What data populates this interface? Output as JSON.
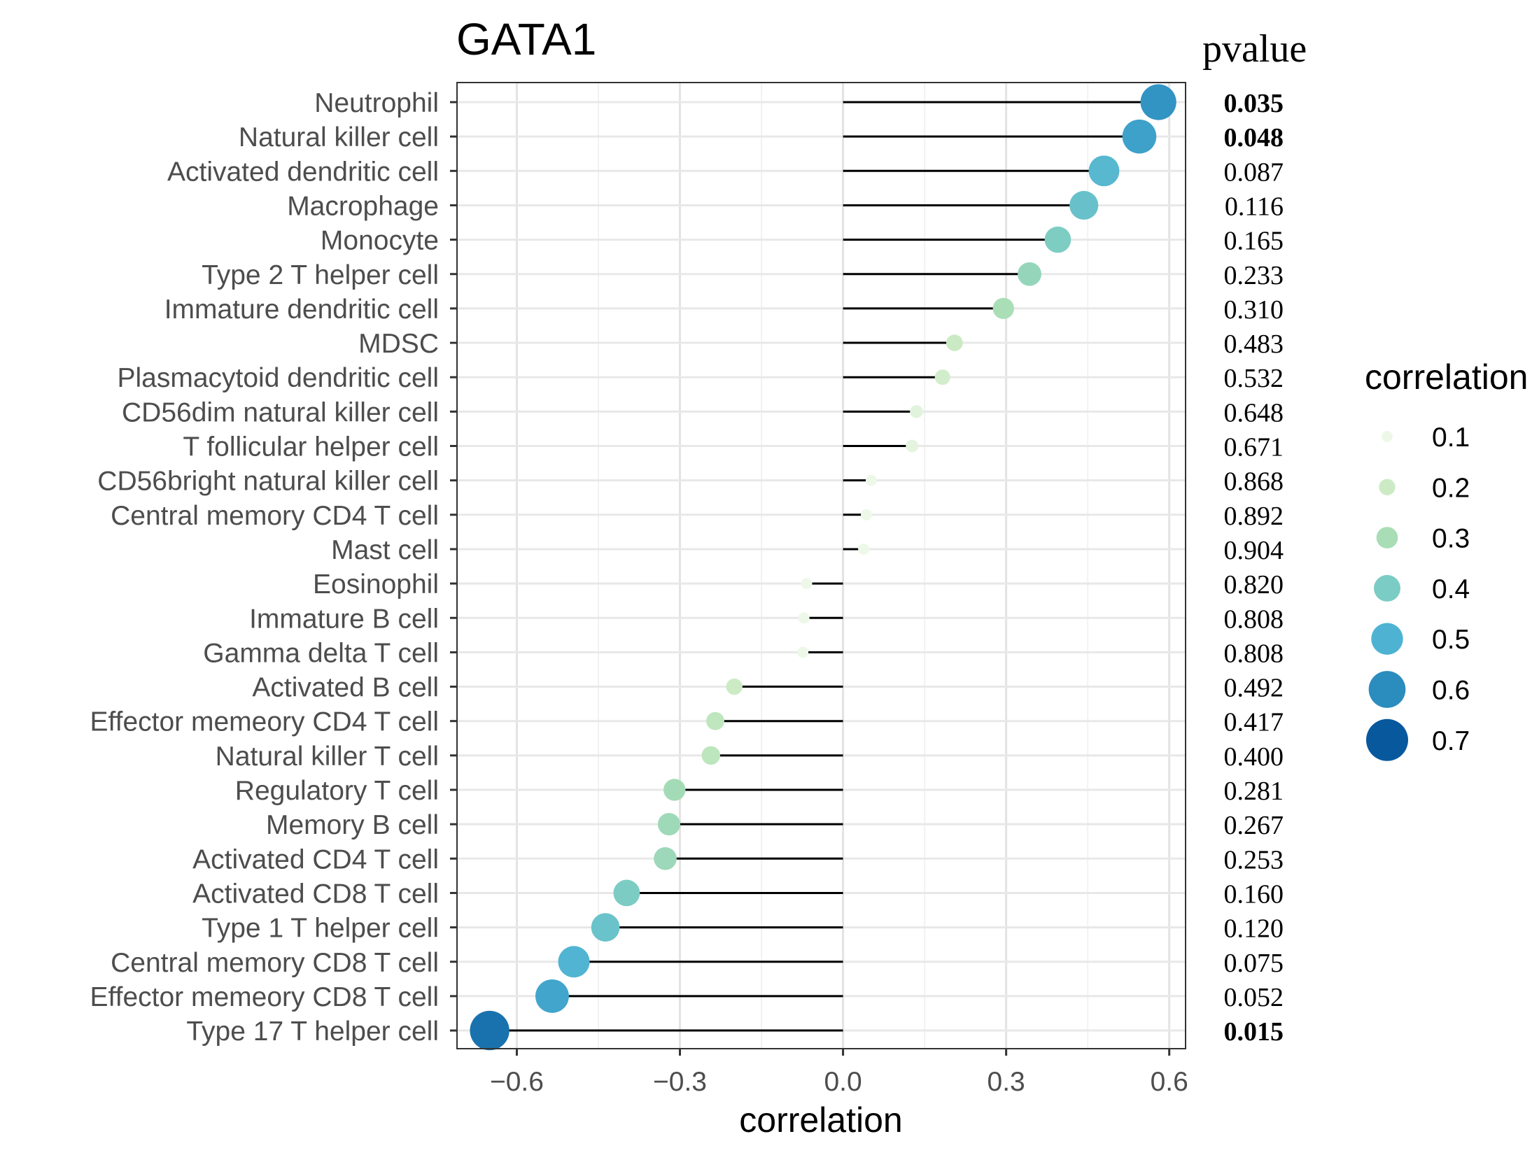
{
  "chart_data": {
    "type": "lollipop",
    "title": "GATA1",
    "xlabel": "correlation",
    "ylabel": "",
    "xlim": [
      -0.71,
      0.63
    ],
    "xticks": [
      -0.6,
      -0.3,
      0.0,
      0.3,
      0.6
    ],
    "xtick_labels": [
      "−0.6",
      "−0.3",
      "0.0",
      "0.3",
      "0.6"
    ],
    "grid": true,
    "pvalue_header": "pvalue",
    "categories": [
      "Neutrophil",
      "Natural killer cell",
      "Activated dendritic cell",
      "Macrophage",
      "Monocyte",
      "Type 2 T helper cell",
      "Immature dendritic cell",
      "MDSC",
      "Plasmacytoid dendritic cell",
      "CD56dim natural killer cell",
      "T follicular helper cell",
      "CD56bright natural killer cell",
      "Central memory CD4 T cell",
      "Mast cell",
      "Eosinophil",
      "Immature  B cell",
      "Gamma delta T cell",
      "Activated B cell",
      "Effector memeory CD4 T cell",
      "Natural killer T cell",
      "Regulatory T cell",
      "Memory B cell",
      "Activated CD4 T cell",
      "Activated CD8 T cell",
      "Type 1 T helper cell",
      "Central memory CD8 T cell",
      "Effector memeory CD8 T cell",
      "Type 17 T helper cell"
    ],
    "values": [
      0.58,
      0.545,
      0.48,
      0.443,
      0.395,
      0.343,
      0.295,
      0.205,
      0.183,
      0.135,
      0.127,
      0.052,
      0.043,
      0.038,
      -0.067,
      -0.072,
      -0.074,
      -0.2,
      -0.235,
      -0.243,
      -0.31,
      -0.32,
      -0.327,
      -0.398,
      -0.437,
      -0.495,
      -0.535,
      -0.65
    ],
    "pvalues": [
      "0.035",
      "0.048",
      "0.087",
      "0.116",
      "0.165",
      "0.233",
      "0.310",
      "0.483",
      "0.532",
      "0.648",
      "0.671",
      "0.868",
      "0.892",
      "0.904",
      "0.820",
      "0.808",
      "0.808",
      "0.492",
      "0.417",
      "0.400",
      "0.281",
      "0.267",
      "0.253",
      "0.160",
      "0.120",
      "0.075",
      "0.052",
      "0.015"
    ],
    "pvalue_bold": [
      true,
      true,
      false,
      false,
      false,
      false,
      false,
      false,
      false,
      false,
      false,
      false,
      false,
      false,
      false,
      false,
      false,
      false,
      false,
      false,
      false,
      false,
      false,
      false,
      false,
      false,
      false,
      true
    ],
    "legend": {
      "title": "correlation",
      "position": "right",
      "levels": [
        0.1,
        0.2,
        0.3,
        0.4,
        0.5,
        0.6,
        0.7
      ],
      "labels": [
        "0.1",
        "0.2",
        "0.3",
        "0.4",
        "0.5",
        "0.6",
        "0.7"
      ],
      "colors": [
        "#edf8e9",
        "#ccebc5",
        "#a8ddb5",
        "#7bccc4",
        "#4eb3d3",
        "#2b8cbe",
        "#08589e"
      ]
    }
  }
}
